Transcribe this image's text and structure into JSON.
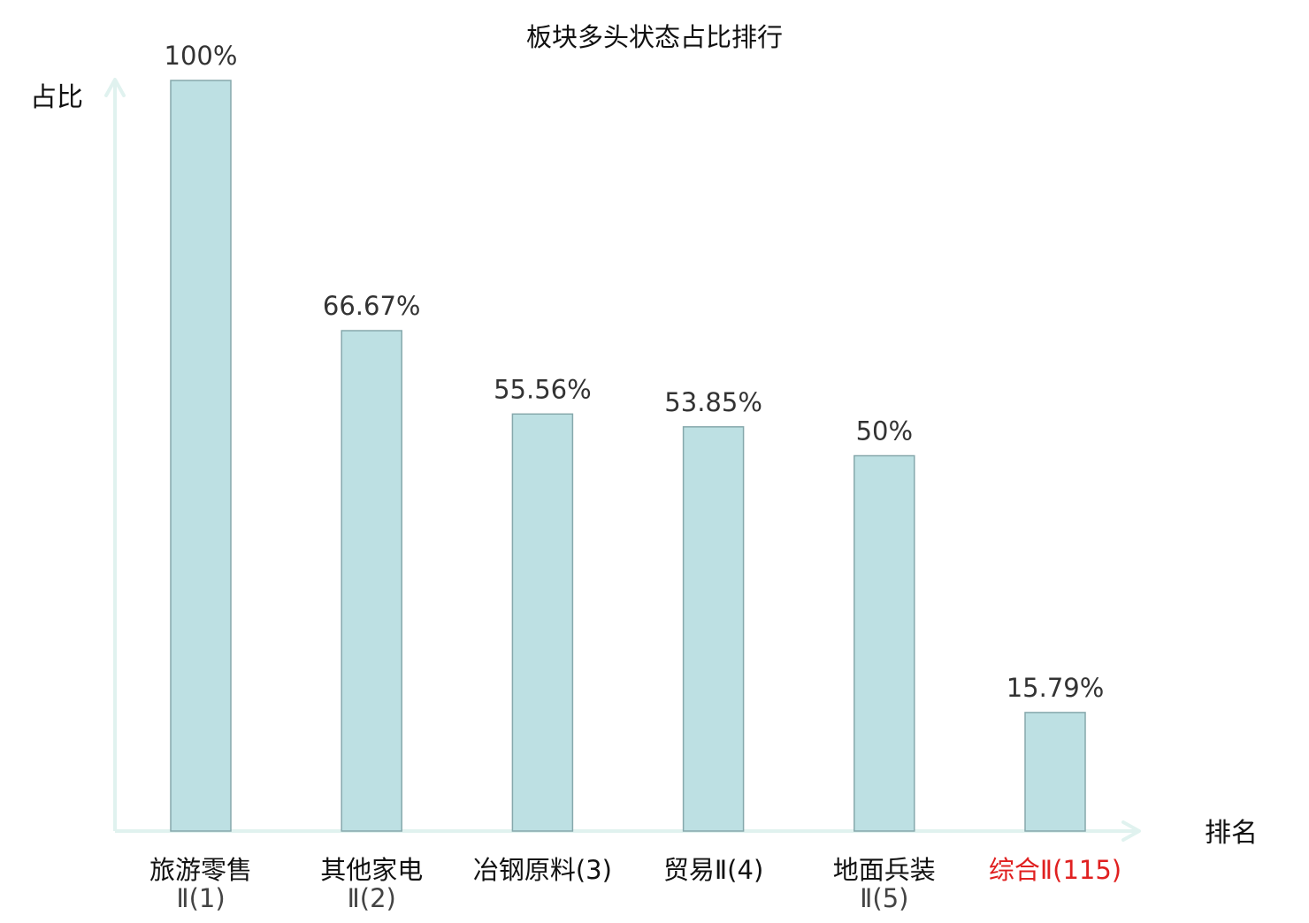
{
  "chart_data": {
    "type": "bar",
    "title": "板块多头状态占比排行",
    "ylabel": "占比",
    "xlabel": "排名",
    "ylim": [
      0,
      100
    ],
    "grid": false,
    "categories": [
      {
        "lines": [
          "旅游零售",
          "Ⅱ(1)"
        ],
        "highlight": false
      },
      {
        "lines": [
          "其他家电",
          "Ⅱ(2)"
        ],
        "highlight": false
      },
      {
        "lines": [
          "冶钢原料(3)"
        ],
        "highlight": false
      },
      {
        "lines": [
          "贸易Ⅱ(4)"
        ],
        "highlight": false
      },
      {
        "lines": [
          "地面兵装",
          "Ⅱ(5)"
        ],
        "highlight": false
      },
      {
        "lines": [
          "综合Ⅱ(115)"
        ],
        "highlight": true
      }
    ],
    "values": [
      100,
      66.67,
      55.56,
      53.85,
      50,
      15.79
    ],
    "value_labels": [
      "100%",
      "66.67%",
      "55.56%",
      "53.85%",
      "50%",
      "15.79%"
    ]
  },
  "colors": {
    "bar_fill": "#bde0e3",
    "bar_stroke": "#86a8ac",
    "axis": "#e0f2ef",
    "title_text": "#111111",
    "value_label_text": "#333333",
    "category_name_text": "#111111",
    "category_rank_text": "#444444",
    "highlight_text": "#e02020"
  }
}
